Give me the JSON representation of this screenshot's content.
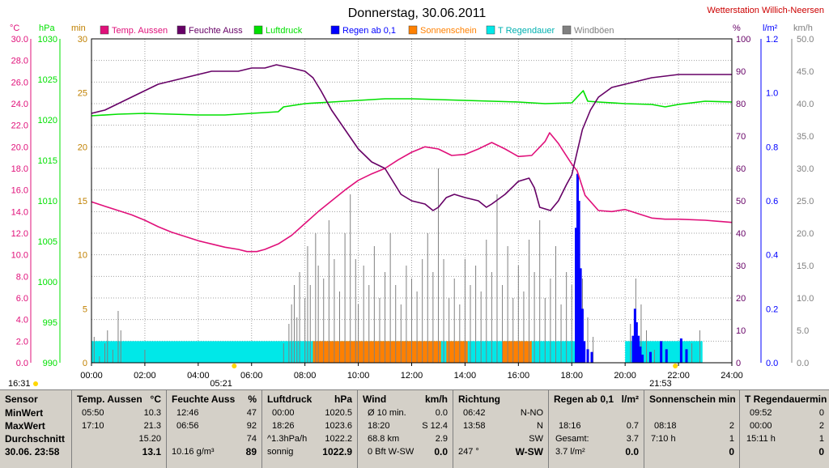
{
  "title": "Donnerstag, 30.06.2011",
  "station": "Wetterstation Willich-Neersen",
  "colors": {
    "temp": "#e0107a",
    "humidity": "#660066",
    "pressure": "#00e000",
    "rain": "#0000ff",
    "sunshine": "#ff8000",
    "raintime": "#00e8e8",
    "wind": "#808080"
  },
  "axes": {
    "temp": {
      "unit": "°C",
      "min": 0,
      "max": 30,
      "ticks": [
        "0.0",
        "2.0",
        "4.0",
        "6.0",
        "8.0",
        "10.0",
        "12.0",
        "14.0",
        "16.0",
        "18.0",
        "20.0",
        "22.0",
        "24.0",
        "26.0",
        "28.0",
        "30.0"
      ]
    },
    "pressure": {
      "unit": "hPa",
      "min": 990,
      "max": 1030,
      "ticks": [
        "990",
        "995",
        "1000",
        "1005",
        "1010",
        "1015",
        "1020",
        "1025",
        "1030"
      ]
    },
    "minutes": {
      "unit": "min",
      "min": 0,
      "max": 30,
      "ticks": [
        "0",
        "5",
        "10",
        "15",
        "20",
        "25",
        "30"
      ]
    },
    "humidity": {
      "unit": "%",
      "min": 0,
      "max": 100,
      "ticks": [
        "0",
        "10",
        "20",
        "30",
        "40",
        "50",
        "60",
        "70",
        "80",
        "90",
        "100"
      ]
    },
    "rain": {
      "unit": "l/m²",
      "min": 0,
      "max": 1.2,
      "ticks": [
        "0.0",
        "0.2",
        "0.4",
        "0.6",
        "0.8",
        "1.0",
        "1.2"
      ]
    },
    "wind": {
      "unit": "km/h",
      "min": 0,
      "max": 50,
      "ticks": [
        "0.0",
        "5.0",
        "10.0",
        "15.0",
        "20.0",
        "25.0",
        "30.0",
        "35.0",
        "40.0",
        "45.0",
        "50.0"
      ]
    },
    "x_ticks": [
      "00:00",
      "02:00",
      "04:00",
      "06:00",
      "08:00",
      "10:00",
      "12:00",
      "14:00",
      "16:00",
      "18:00",
      "20:00",
      "22:00",
      "24:00"
    ]
  },
  "sun_times": {
    "sunrise": "05:21",
    "sunset": "21:53",
    "daylight_start": "16:31"
  },
  "chart_data": {
    "type": "line",
    "x_unit": "hour",
    "x_range": [
      0,
      24
    ],
    "grid": true,
    "legend_position": "top",
    "series": [
      {
        "name": "Temp. Aussen",
        "axis": "temp",
        "points": [
          [
            0,
            14.9
          ],
          [
            0.5,
            14.5
          ],
          [
            1,
            14.1
          ],
          [
            1.5,
            13.7
          ],
          [
            2,
            13.2
          ],
          [
            2.5,
            12.6
          ],
          [
            3,
            12.1
          ],
          [
            3.5,
            11.7
          ],
          [
            4,
            11.3
          ],
          [
            4.5,
            11.0
          ],
          [
            5,
            10.7
          ],
          [
            5.5,
            10.5
          ],
          [
            5.83,
            10.3
          ],
          [
            6.2,
            10.3
          ],
          [
            6.5,
            10.5
          ],
          [
            7,
            11.0
          ],
          [
            7.5,
            11.8
          ],
          [
            8,
            12.9
          ],
          [
            8.5,
            14.0
          ],
          [
            9,
            15.0
          ],
          [
            9.5,
            16.0
          ],
          [
            10,
            16.9
          ],
          [
            10.5,
            17.5
          ],
          [
            11,
            18.0
          ],
          [
            11.5,
            18.8
          ],
          [
            12,
            19.5
          ],
          [
            12.5,
            20.0
          ],
          [
            13,
            19.8
          ],
          [
            13.5,
            19.2
          ],
          [
            14,
            19.3
          ],
          [
            14.5,
            19.8
          ],
          [
            15,
            20.4
          ],
          [
            15.5,
            19.8
          ],
          [
            16,
            19.1
          ],
          [
            16.5,
            19.2
          ],
          [
            17,
            20.5
          ],
          [
            17.17,
            21.3
          ],
          [
            17.5,
            20.3
          ],
          [
            18,
            18.4
          ],
          [
            18.2,
            17.8
          ],
          [
            18.5,
            15.5
          ],
          [
            19,
            14.1
          ],
          [
            19.5,
            14.0
          ],
          [
            20,
            14.2
          ],
          [
            20.5,
            13.8
          ],
          [
            21,
            13.4
          ],
          [
            21.5,
            13.3
          ],
          [
            22,
            13.3
          ],
          [
            23,
            13.2
          ],
          [
            24,
            13.0
          ]
        ]
      },
      {
        "name": "Feuchte Auss",
        "axis": "humidity",
        "points": [
          [
            0,
            77
          ],
          [
            0.5,
            78
          ],
          [
            1,
            80
          ],
          [
            1.5,
            82
          ],
          [
            2,
            84
          ],
          [
            2.5,
            86
          ],
          [
            3,
            87
          ],
          [
            3.5,
            88
          ],
          [
            4,
            89
          ],
          [
            4.5,
            90
          ],
          [
            5,
            90
          ],
          [
            5.5,
            90
          ],
          [
            6,
            91
          ],
          [
            6.5,
            91
          ],
          [
            6.93,
            92
          ],
          [
            7.5,
            91
          ],
          [
            8,
            90
          ],
          [
            8.3,
            88
          ],
          [
            8.6,
            84
          ],
          [
            9,
            78
          ],
          [
            9.5,
            72
          ],
          [
            10,
            66
          ],
          [
            10.5,
            62
          ],
          [
            11,
            60
          ],
          [
            11.3,
            56
          ],
          [
            11.6,
            52
          ],
          [
            12,
            50
          ],
          [
            12.5,
            49
          ],
          [
            12.8,
            47
          ],
          [
            13,
            48
          ],
          [
            13.3,
            51
          ],
          [
            13.6,
            52
          ],
          [
            14,
            51
          ],
          [
            14.5,
            50
          ],
          [
            14.8,
            48
          ],
          [
            15,
            49
          ],
          [
            15.5,
            52
          ],
          [
            16,
            56
          ],
          [
            16.4,
            57
          ],
          [
            16.6,
            54
          ],
          [
            16.8,
            48
          ],
          [
            17.2,
            47
          ],
          [
            17.5,
            50
          ],
          [
            17.8,
            55
          ],
          [
            18,
            58
          ],
          [
            18.2,
            65
          ],
          [
            18.4,
            72
          ],
          [
            18.7,
            78
          ],
          [
            19,
            82
          ],
          [
            19.5,
            85
          ],
          [
            20,
            86
          ],
          [
            20.5,
            87
          ],
          [
            21,
            88
          ],
          [
            22,
            89
          ],
          [
            22.3,
            89
          ],
          [
            23,
            89
          ],
          [
            24,
            89
          ]
        ]
      },
      {
        "name": "Luftdruck",
        "axis": "pressure",
        "points": [
          [
            0,
            1020.5
          ],
          [
            1,
            1020.7
          ],
          [
            2,
            1020.8
          ],
          [
            3,
            1020.7
          ],
          [
            4,
            1020.6
          ],
          [
            5,
            1020.6
          ],
          [
            6,
            1020.8
          ],
          [
            7,
            1021.0
          ],
          [
            7.2,
            1021.6
          ],
          [
            8,
            1022.0
          ],
          [
            9,
            1022.2
          ],
          [
            10,
            1022.4
          ],
          [
            11,
            1022.6
          ],
          [
            12,
            1022.6
          ],
          [
            13,
            1022.5
          ],
          [
            14,
            1022.4
          ],
          [
            15,
            1022.3
          ],
          [
            16,
            1022.2
          ],
          [
            17,
            1022.0
          ],
          [
            18,
            1022.1
          ],
          [
            18.43,
            1023.6
          ],
          [
            18.6,
            1022.3
          ],
          [
            19,
            1022.2
          ],
          [
            20,
            1022.0
          ],
          [
            21,
            1021.9
          ],
          [
            21.5,
            1021.6
          ],
          [
            22,
            1021.9
          ],
          [
            23,
            1022.3
          ],
          [
            24,
            1022.2
          ]
        ]
      },
      {
        "name": "Windböen",
        "axis": "wind",
        "bars": [
          [
            0.1,
            4
          ],
          [
            0.3,
            1
          ],
          [
            0.5,
            3
          ],
          [
            0.6,
            5
          ],
          [
            0.8,
            2
          ],
          [
            1,
            8
          ],
          [
            1.1,
            5
          ],
          [
            2,
            2
          ],
          [
            7.2,
            3
          ],
          [
            7.4,
            6
          ],
          [
            7.5,
            9
          ],
          [
            7.6,
            12
          ],
          [
            7.7,
            7
          ],
          [
            7.8,
            14
          ],
          [
            8,
            10
          ],
          [
            8.1,
            18
          ],
          [
            8.2,
            12
          ],
          [
            8.4,
            20
          ],
          [
            8.5,
            15
          ],
          [
            8.7,
            13
          ],
          [
            8.9,
            22
          ],
          [
            9.1,
            16
          ],
          [
            9.3,
            11
          ],
          [
            9.5,
            20
          ],
          [
            9.7,
            26
          ],
          [
            9.9,
            16
          ],
          [
            10,
            9
          ],
          [
            10.2,
            15
          ],
          [
            10.4,
            12
          ],
          [
            10.6,
            18
          ],
          [
            10.8,
            10
          ],
          [
            11,
            14
          ],
          [
            11.2,
            20
          ],
          [
            11.4,
            12
          ],
          [
            11.6,
            9
          ],
          [
            11.8,
            15
          ],
          [
            12,
            13
          ],
          [
            12.2,
            11
          ],
          [
            12.4,
            16
          ],
          [
            12.6,
            20
          ],
          [
            12.8,
            14
          ],
          [
            13,
            30
          ],
          [
            13.2,
            16
          ],
          [
            13.4,
            10
          ],
          [
            13.6,
            13
          ],
          [
            13.8,
            9
          ],
          [
            14,
            16
          ],
          [
            14.2,
            12
          ],
          [
            14.4,
            15
          ],
          [
            14.6,
            11
          ],
          [
            14.8,
            19
          ],
          [
            15,
            14
          ],
          [
            15.2,
            26
          ],
          [
            15.4,
            12
          ],
          [
            15.6,
            18
          ],
          [
            15.8,
            10
          ],
          [
            16,
            15
          ],
          [
            16.2,
            11
          ],
          [
            16.4,
            19
          ],
          [
            16.6,
            14
          ],
          [
            16.8,
            22
          ],
          [
            17,
            10
          ],
          [
            17.2,
            13
          ],
          [
            17.4,
            18
          ],
          [
            17.6,
            9
          ],
          [
            17.8,
            14
          ],
          [
            18,
            12
          ],
          [
            18.2,
            19
          ],
          [
            18.4,
            13
          ],
          [
            18.6,
            7
          ],
          [
            18.8,
            4
          ],
          [
            20.2,
            6
          ],
          [
            20.4,
            13
          ],
          [
            20.6,
            9
          ],
          [
            20.8,
            5
          ],
          [
            21.1,
            2
          ],
          [
            22.5,
            3
          ],
          [
            22.8,
            5
          ]
        ]
      },
      {
        "name": "Regen ab 0,1",
        "axis": "rain",
        "bars": [
          [
            18.16,
            0.5
          ],
          [
            18.22,
            0.7
          ],
          [
            18.27,
            0.6
          ],
          [
            18.33,
            0.35
          ],
          [
            18.4,
            0.2
          ],
          [
            18.47,
            0.08
          ],
          [
            18.6,
            0.05
          ],
          [
            18.75,
            0.04
          ],
          [
            20.3,
            0.1
          ],
          [
            20.37,
            0.2
          ],
          [
            20.43,
            0.15
          ],
          [
            20.5,
            0.1
          ],
          [
            20.57,
            0.06
          ],
          [
            20.65,
            0.03
          ],
          [
            20.95,
            0.04
          ],
          [
            21.35,
            0.08
          ],
          [
            21.55,
            0.05
          ],
          [
            22.1,
            0.09
          ],
          [
            22.3,
            0.05
          ]
        ]
      },
      {
        "name": "Sonnenschein",
        "axis": "minutes",
        "ranges": [
          [
            8.3,
            13.1
          ],
          [
            13.3,
            14.1
          ],
          [
            15.4,
            16.5
          ]
        ]
      },
      {
        "name": "T Regendauer",
        "axis": "minutes",
        "ranges": [
          [
            0,
            18.3
          ],
          [
            20.0,
            22.9
          ]
        ]
      }
    ],
    "sunshine_level": 2,
    "raintime_level": 2
  },
  "legend": [
    {
      "label": "Temp. Aussen",
      "color": "#e0107a"
    },
    {
      "label": "Feuchte Auss",
      "color": "#660066"
    },
    {
      "label": "Luftdruck",
      "color": "#00e000"
    },
    {
      "label": "Regen ab 0,1",
      "color": "#0000ff"
    },
    {
      "label": "Sonnenschein",
      "color": "#ff8000"
    },
    {
      "label": "T Regendauer",
      "color": "#00e8e8"
    },
    {
      "label": "Windböen",
      "color": "#808080"
    }
  ],
  "table": {
    "sensor": {
      "header": "Sensor",
      "rows": [
        "MinWert",
        "MaxWert",
        "Durchschnitt",
        "30.06. 23:58"
      ]
    },
    "temp": {
      "header": "Temp. Aussen",
      "unit": "°C",
      "min_time": "05:50",
      "min": "10.3",
      "max_time": "17:10",
      "max": "21.3",
      "avg": "15.20",
      "current": "13.1"
    },
    "humidity": {
      "header": "Feuchte Auss",
      "unit": "%",
      "min_time": "12:46",
      "min": "47",
      "max_time": "06:56",
      "max": "92",
      "avg": "74",
      "current_abs": "10.16 g/m³",
      "current": "89"
    },
    "pressure": {
      "header": "Luftdruck",
      "unit": "hPa",
      "min_time": "00:00",
      "min": "1020.5",
      "max_time": "18:26",
      "max": "1023.6",
      "trend": "^1.3hPa/h",
      "avg": "1022.2",
      "forecast": "sonnig",
      "current": "1022.9"
    },
    "wind": {
      "header": "Wind",
      "unit": "km/h",
      "r1_label": "Ø 10 min.",
      "r1_val": "0.0",
      "r2_time": "18:20",
      "r2_val": "S 12.4",
      "r3_label": "68.8 km",
      "r3_val": "2.9",
      "r4_label": "0 Bft W-SW",
      "r4_val": "0.0"
    },
    "direction": {
      "header": "Richtung",
      "r1_time": "06:42",
      "r1_val": "N-NO",
      "r2_time": "13:58",
      "r2_val": "N",
      "r3_val": "SW",
      "r4_label": "247 °",
      "r4_val": "W-SW"
    },
    "rain": {
      "header": "Regen ab 0,1",
      "unit": "l/m²",
      "r2_time": "18:16",
      "r2_val": "0.7",
      "r3_label": "Gesamt:",
      "r3_val": "3.7",
      "r4_label": "3.7 l/m²",
      "r4_val": "0.0"
    },
    "sunshine": {
      "header": "Sonnenschein min",
      "r2_time": "08:18",
      "r2_val": "2",
      "r3_label": "7:10 h",
      "r3_val": "1",
      "r4_val": "0"
    },
    "raintime": {
      "header": "T Regendauermin",
      "r1_time": "09:52",
      "r1_val": "0",
      "r2_time": "00:00",
      "r2_val": "2",
      "r3_label": "15:11 h",
      "r3_val": "1",
      "r4_val": "0"
    }
  }
}
